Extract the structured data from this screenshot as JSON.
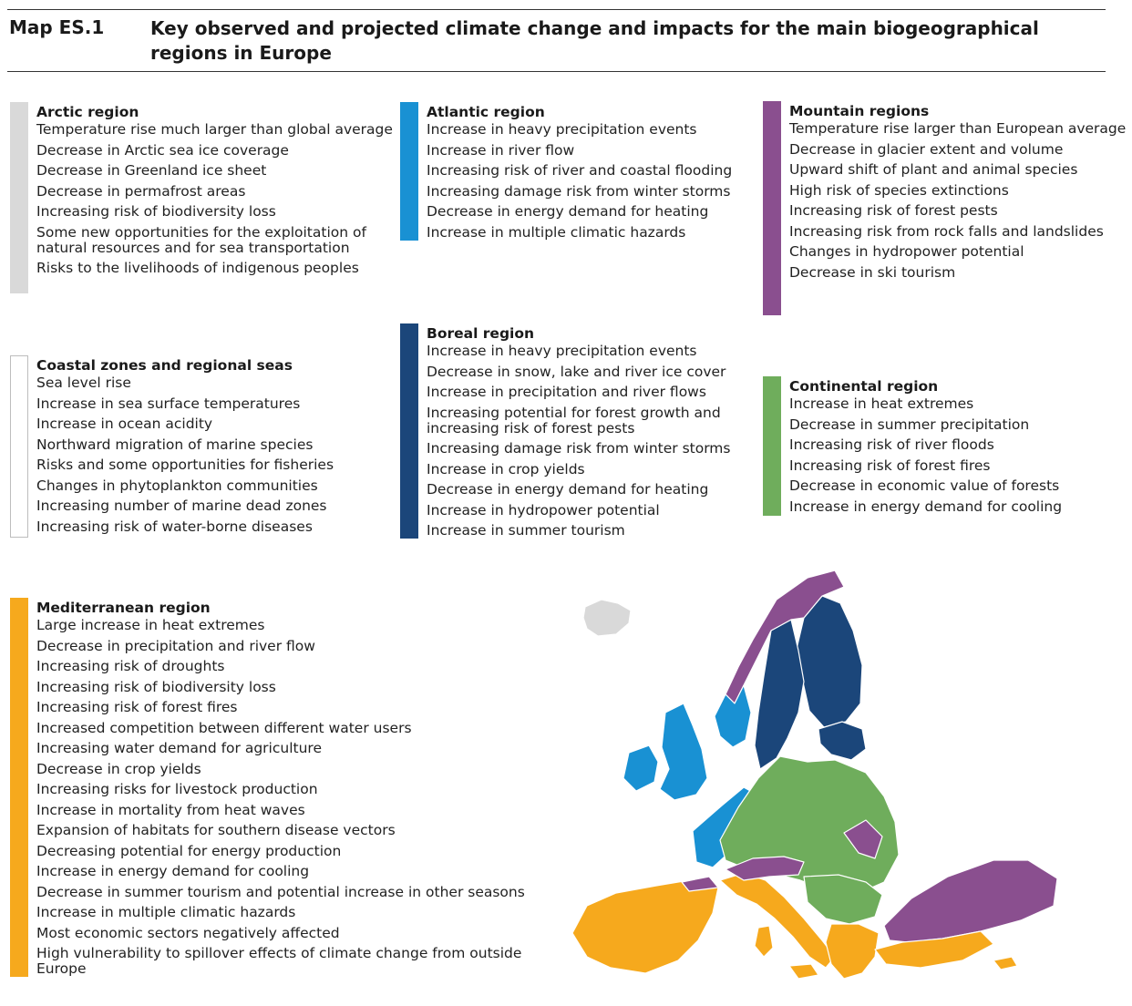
{
  "header": {
    "label": "Map ES.1",
    "title": "Key observed and projected climate change and impacts for the main biogeographical regions in Europe"
  },
  "colors": {
    "arctic": "#d9d9d9",
    "coastal": "#ffffff",
    "atlantic": "#1991d3",
    "boreal": "#1b467a",
    "mountain": "#8a4f8f",
    "continental": "#6fad5c",
    "mediterranean": "#f6a91d",
    "iceland": "#d9d9d9"
  },
  "regions": {
    "arctic": {
      "title": "Arctic region",
      "items": [
        "Temperature rise much larger than global average",
        "Decrease in Arctic sea ice coverage",
        "Decrease in Greenland ice sheet",
        "Decrease in permafrost areas",
        "Increasing risk of biodiversity loss",
        "Some new opportunities for the exploitation of natural resources and for sea transportation",
        "Risks to the livelihoods of indigenous peoples"
      ]
    },
    "coastal": {
      "title": "Coastal zones and regional seas",
      "items": [
        "Sea level rise",
        "Increase in sea surface temperatures",
        "Increase in ocean acidity",
        "Northward migration of marine species",
        "Risks and some opportunities for fisheries",
        "Changes in phytoplankton communities",
        "Increasing number of marine dead zones",
        "Increasing risk of water-borne diseases"
      ]
    },
    "atlantic": {
      "title": "Atlantic region",
      "items": [
        "Increase in heavy precipitation events",
        "Increase in river flow",
        "Increasing risk of river and coastal flooding",
        "Increasing damage risk from winter storms",
        "Decrease in energy demand for heating",
        "Increase in multiple climatic hazards"
      ]
    },
    "boreal": {
      "title": "Boreal region",
      "items": [
        "Increase in heavy precipitation events",
        "Decrease in snow, lake and river ice cover",
        "Increase in precipitation and river flows",
        "Increasing potential for forest growth and increasing risk of forest pests",
        "Increasing damage risk from winter storms",
        "Increase in crop yields",
        "Decrease in energy demand for heating",
        "Increase in hydropower potential",
        "Increase in summer tourism"
      ]
    },
    "mountain": {
      "title": "Mountain regions",
      "items": [
        "Temperature rise larger than European average",
        "Decrease in glacier extent and volume",
        "Upward shift of plant and animal species",
        "High risk of species extinctions",
        "Increasing risk of forest pests",
        "Increasing risk from rock falls and landslides",
        "Changes in hydropower potential",
        "Decrease in ski tourism"
      ]
    },
    "continental": {
      "title": "Continental region",
      "items": [
        "Increase in heat extremes",
        "Decrease in summer precipitation",
        "Increasing risk of river floods",
        "Increasing risk of forest fires",
        "Decrease in economic value of forests",
        "Increase in energy demand for cooling"
      ]
    },
    "mediterranean": {
      "title": "Mediterranean region",
      "items": [
        "Large increase in heat extremes",
        "Decrease in precipitation and river flow",
        "Increasing risk of droughts",
        "Increasing risk of biodiversity loss",
        "Increasing risk of forest fires",
        "Increased competition between different water users",
        "Increasing water demand for agriculture",
        "Decrease in crop yields",
        "Increasing risks for livestock production",
        "Increase in mortality from heat waves",
        "Expansion of habitats for southern disease vectors",
        "Decreasing potential for energy production",
        "Increase in energy demand for cooling",
        "Decrease in summer tourism and potential increase in other seasons",
        "Increase in multiple climatic hazards",
        "Most economic sectors negatively affected",
        "High vulnerability to spillover effects of climate change from outside Europe"
      ]
    }
  }
}
